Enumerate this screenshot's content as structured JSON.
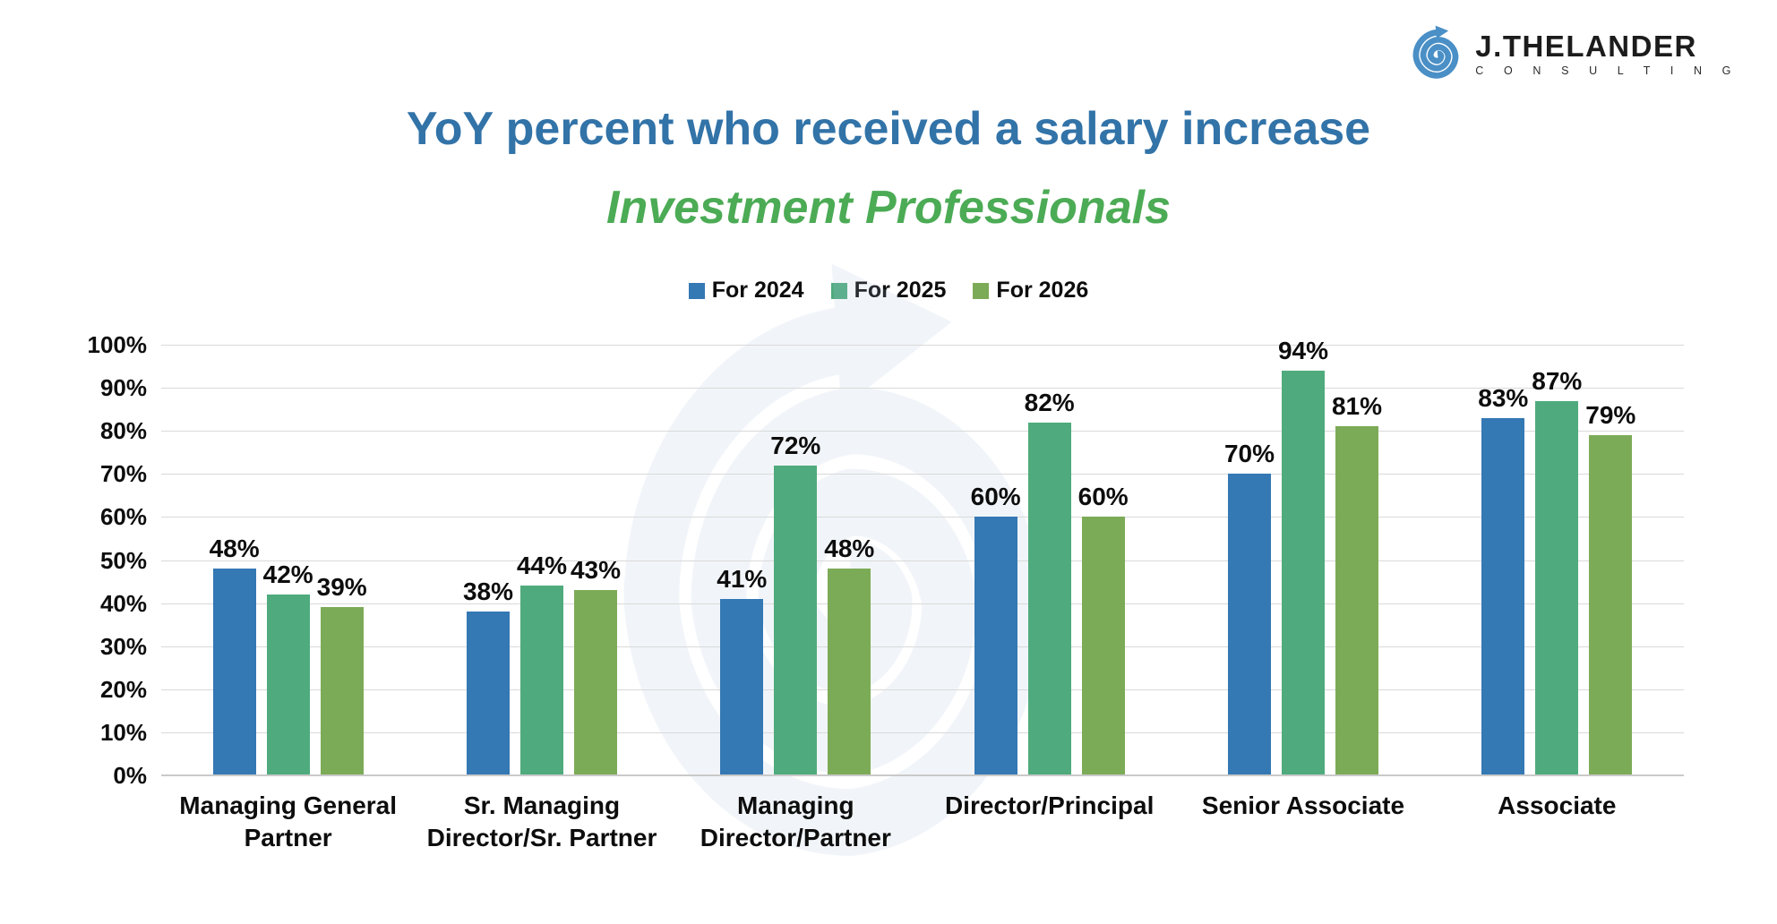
{
  "logo": {
    "name": "J.THELANDER",
    "sub": "C O N S U L T I N G",
    "icon": "spiral-arrow-icon",
    "icon_color": "#4a8fc6",
    "text_color": "#1c1c1c"
  },
  "header": {
    "title": "YoY percent who received a salary increase",
    "subtitle": "Investment Professionals",
    "title_color": "#3273a8",
    "subtitle_color": "#4cab55"
  },
  "chart_data": {
    "type": "bar",
    "title": "YoY percent who received a salary increase",
    "subtitle": "Investment Professionals",
    "categories": [
      "Managing General\nPartner",
      "Sr. Managing\nDirector/Sr. Partner",
      "Managing\nDirector/Partner",
      "Director/Principal",
      "Senior Associate",
      "Associate"
    ],
    "series": [
      {
        "name": "For 2024",
        "color": "#3478b4",
        "values": [
          48,
          38,
          41,
          60,
          70,
          83
        ]
      },
      {
        "name": "For 2025",
        "color": "#4fab7d",
        "values": [
          42,
          44,
          72,
          82,
          94,
          87
        ]
      },
      {
        "name": "For 2026",
        "color": "#7cab57",
        "values": [
          39,
          43,
          48,
          60,
          81,
          79
        ]
      }
    ],
    "value_suffix": "%",
    "xlabel": "",
    "ylabel": "",
    "ylim": [
      0,
      100
    ],
    "ytick_step": 10,
    "ytick_labels": [
      "0%",
      "10%",
      "20%",
      "30%",
      "40%",
      "50%",
      "60%",
      "70%",
      "80%",
      "90%",
      "100%"
    ],
    "grid": true,
    "gridline_color": "#d9d9d9",
    "legend_position": "top",
    "data_labels": true
  },
  "watermark": {
    "name": "thelander-spiral-watermark",
    "color": "#aec7e0"
  }
}
